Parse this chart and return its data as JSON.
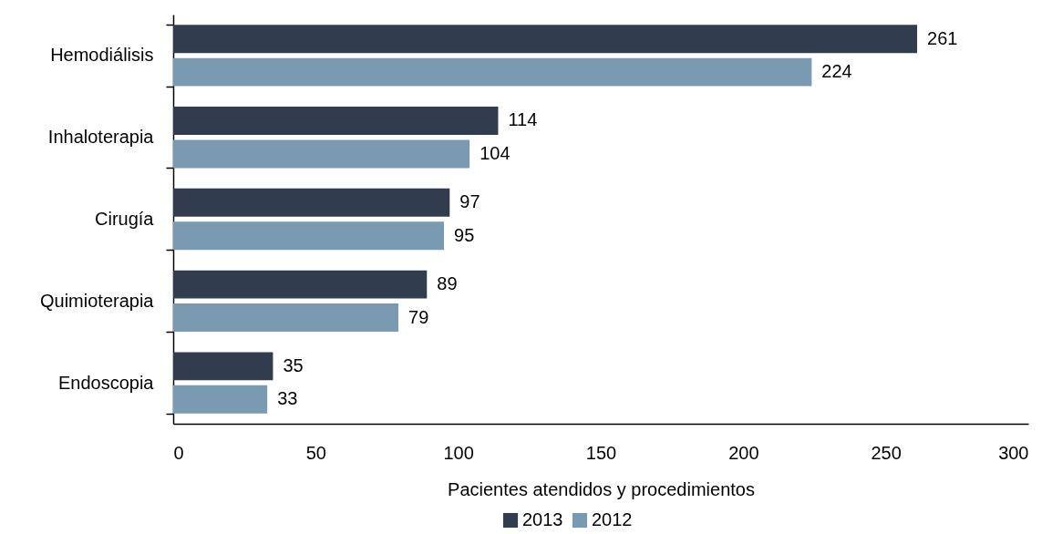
{
  "chart_data": {
    "type": "bar",
    "orientation": "horizontal",
    "categories": [
      "Hemodiálisis",
      "Inhaloterapia",
      "Cirugía",
      "Quimioterapia",
      "Endoscopia"
    ],
    "series": [
      {
        "name": "2013",
        "color": "#313c4e",
        "values": [
          261,
          114,
          97,
          89,
          35
        ]
      },
      {
        "name": "2012",
        "color": "#7a9ab2",
        "values": [
          224,
          104,
          95,
          79,
          33
        ]
      }
    ],
    "xlabel": "Pacientes atendidos y procedimientos",
    "xlim": [
      0,
      300
    ],
    "xticks": [
      0,
      50,
      100,
      150,
      200,
      250,
      300
    ],
    "data_labels": true,
    "legend": "bottom"
  }
}
